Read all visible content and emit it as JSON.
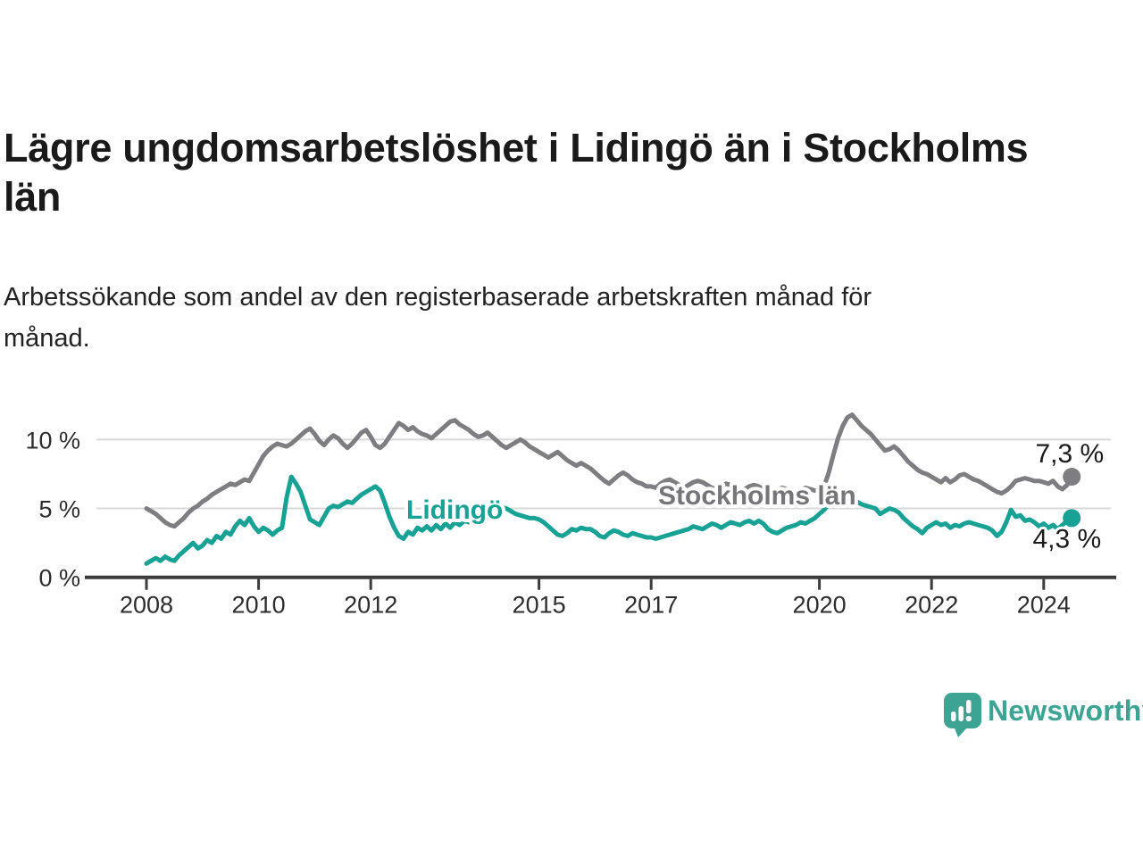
{
  "header": {
    "title": "Lägre ungdomsarbetslöshet i Lidingö än i Stockholms\nlän",
    "subtitle": "Arbetssökande som andel av den registerbaserade arbetskraften månad för\nmånad."
  },
  "logo": {
    "text": "Newsworthy",
    "color": "#3da392"
  },
  "chart_data": {
    "type": "line",
    "title": "Lägre ungdomsarbetslöshet i Lidingö än i Stockholms län",
    "subtitle": "Arbetssökande som andel av den registerbaserade arbetskraften månad för månad.",
    "unit": "%",
    "frequency": "monthly",
    "x_start_year": 2008,
    "points_per_year": 12,
    "ylim": [
      0,
      12.5
    ],
    "xlim": [
      2006.9,
      2025.35
    ],
    "grid": "horizontal-only",
    "y_ticks": [
      {
        "value": 0,
        "label": "0 %"
      },
      {
        "value": 5,
        "label": "5 %"
      },
      {
        "value": 10,
        "label": "10 %"
      }
    ],
    "x_ticks": [
      {
        "year": 2008,
        "label": "2008"
      },
      {
        "year": 2010,
        "label": "2010"
      },
      {
        "year": 2012,
        "label": "2012"
      },
      {
        "year": 2015,
        "label": "2015"
      },
      {
        "year": 2017,
        "label": "2017"
      },
      {
        "year": 2020,
        "label": "2020"
      },
      {
        "year": 2022,
        "label": "2022"
      },
      {
        "year": 2024,
        "label": "2024"
      }
    ],
    "series": [
      {
        "name": "Stockholms län",
        "color": "#7d7d82",
        "label_color": "#75757a",
        "end_label": "7,3 %",
        "end_value": 7.3,
        "values": [
          5.0,
          4.8,
          4.6,
          4.3,
          4.0,
          3.8,
          3.7,
          4.0,
          4.3,
          4.7,
          5.0,
          5.2,
          5.5,
          5.7,
          6.0,
          6.2,
          6.4,
          6.6,
          6.8,
          6.7,
          6.9,
          7.1,
          7.0,
          7.6,
          8.2,
          8.8,
          9.2,
          9.5,
          9.7,
          9.6,
          9.5,
          9.7,
          10.0,
          10.3,
          10.6,
          10.8,
          10.4,
          9.9,
          9.6,
          10.0,
          10.3,
          10.1,
          9.7,
          9.4,
          9.7,
          10.1,
          10.5,
          10.7,
          10.2,
          9.6,
          9.4,
          9.7,
          10.2,
          10.7,
          11.2,
          11.0,
          10.7,
          10.9,
          10.6,
          10.4,
          10.3,
          10.1,
          10.4,
          10.7,
          11.0,
          11.3,
          11.4,
          11.1,
          10.9,
          10.7,
          10.4,
          10.2,
          10.3,
          10.5,
          10.2,
          9.9,
          9.6,
          9.4,
          9.6,
          9.8,
          10.0,
          9.8,
          9.5,
          9.3,
          9.1,
          8.9,
          8.7,
          8.9,
          9.1,
          8.8,
          8.5,
          8.3,
          8.1,
          8.3,
          8.1,
          7.9,
          7.6,
          7.3,
          7.0,
          6.8,
          7.1,
          7.4,
          7.6,
          7.4,
          7.1,
          6.9,
          6.8,
          6.6,
          6.6,
          6.5,
          6.8,
          7.0,
          7.1,
          6.9,
          6.7,
          6.5,
          6.7,
          6.9,
          7.0,
          6.9,
          6.7,
          6.5,
          6.4,
          6.6,
          6.8,
          6.7,
          6.5,
          6.3,
          6.4,
          6.6,
          6.7,
          6.6,
          6.4,
          6.2,
          6.1,
          6.3,
          6.5,
          6.4,
          6.2,
          6.1,
          6.3,
          6.5,
          6.4,
          6.3,
          6.3,
          6.6,
          7.6,
          8.9,
          10.1,
          11.0,
          11.6,
          11.8,
          11.4,
          11.0,
          10.7,
          10.4,
          10.0,
          9.6,
          9.2,
          9.3,
          9.5,
          9.2,
          8.8,
          8.4,
          8.1,
          7.8,
          7.6,
          7.5,
          7.3,
          7.1,
          6.9,
          7.2,
          6.9,
          7.1,
          7.4,
          7.5,
          7.3,
          7.1,
          7.0,
          6.8,
          6.6,
          6.4,
          6.2,
          6.1,
          6.3,
          6.6,
          7.0,
          7.1,
          7.2,
          7.1,
          7.0,
          7.0,
          6.9,
          6.8,
          7.0,
          6.6,
          6.4,
          6.7,
          7.3
        ]
      },
      {
        "name": "Lidingö",
        "color": "#18a295",
        "label_color": "#18a295",
        "end_label": "4,3 %",
        "end_value": 4.3,
        "values": [
          1.0,
          1.2,
          1.4,
          1.2,
          1.5,
          1.3,
          1.2,
          1.6,
          1.9,
          2.2,
          2.5,
          2.1,
          2.3,
          2.7,
          2.5,
          3.0,
          2.8,
          3.3,
          3.1,
          3.7,
          4.1,
          3.8,
          4.3,
          3.7,
          3.3,
          3.6,
          3.4,
          3.1,
          3.4,
          3.6,
          5.8,
          7.3,
          6.8,
          6.2,
          5.2,
          4.2,
          4.0,
          3.8,
          4.4,
          5.0,
          5.2,
          5.1,
          5.3,
          5.5,
          5.4,
          5.7,
          6.0,
          6.2,
          6.4,
          6.6,
          6.3,
          5.4,
          4.4,
          3.6,
          3.0,
          2.8,
          3.3,
          3.1,
          3.6,
          3.4,
          3.7,
          3.4,
          3.8,
          3.5,
          3.9,
          3.6,
          4.0,
          3.8,
          4.1,
          4.0,
          4.3,
          4.4,
          4.5,
          4.7,
          4.9,
          5.0,
          5.1,
          5.0,
          4.8,
          4.6,
          4.5,
          4.4,
          4.3,
          4.3,
          4.2,
          4.0,
          3.7,
          3.4,
          3.1,
          3.0,
          3.2,
          3.5,
          3.4,
          3.6,
          3.5,
          3.5,
          3.3,
          3.0,
          2.9,
          3.2,
          3.4,
          3.3,
          3.1,
          3.0,
          3.2,
          3.1,
          3.0,
          2.9,
          2.9,
          2.8,
          2.9,
          3.0,
          3.1,
          3.2,
          3.3,
          3.4,
          3.5,
          3.7,
          3.6,
          3.5,
          3.7,
          3.9,
          3.8,
          3.6,
          3.8,
          4.0,
          3.9,
          3.8,
          4.0,
          4.1,
          3.9,
          4.1,
          3.9,
          3.5,
          3.3,
          3.2,
          3.4,
          3.6,
          3.7,
          3.8,
          4.0,
          3.9,
          4.1,
          4.3,
          4.6,
          4.9,
          5.3,
          5.5,
          5.6,
          5.3,
          5.6,
          5.8,
          5.5,
          5.3,
          5.2,
          5.1,
          5.0,
          4.6,
          4.8,
          5.0,
          4.9,
          4.7,
          4.3,
          4.0,
          3.7,
          3.5,
          3.2,
          3.6,
          3.8,
          4.0,
          3.8,
          3.9,
          3.6,
          3.8,
          3.7,
          3.9,
          4.0,
          3.9,
          3.8,
          3.7,
          3.6,
          3.4,
          3.0,
          3.3,
          4.0,
          4.9,
          4.4,
          4.5,
          4.1,
          4.2,
          4.0,
          3.7,
          3.9,
          3.6,
          3.8,
          3.5,
          3.8,
          4.1,
          4.3
        ]
      }
    ]
  }
}
